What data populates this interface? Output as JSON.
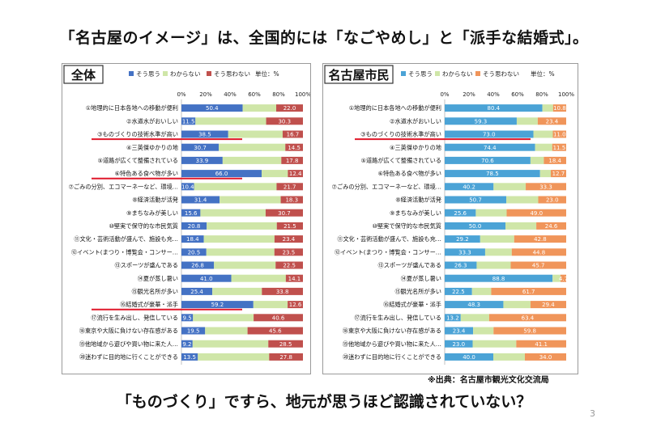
{
  "page": {
    "title": "「名古屋のイメージ」は、全国的には「なごやめし」と「派手な結婚式」。",
    "bottom_text": "「ものづくり」ですら、地元が思うほど認識されていない？",
    "source": "※出典：名古屋市観光文化交流局",
    "page_number": "3"
  },
  "colors": {
    "agree_all": "#4472c4",
    "agree_city": "#4ba3d6",
    "neutral": "#cfe6a8",
    "disagree_all": "#c0504d",
    "disagree_city": "#f0955a",
    "highlight": "#e0182a"
  },
  "chart_data": [
    {
      "type": "bar",
      "orientation": "horizontal",
      "stacked": true,
      "percent": true,
      "title": "全体",
      "unit_label": "単位：%",
      "xlim": [
        0,
        100
      ],
      "xticks": [
        "0%",
        "20%",
        "40%",
        "60%",
        "80%",
        "100%"
      ],
      "legend": [
        "そう思う",
        "わからない",
        "そう思わない"
      ],
      "legend_position": "top",
      "categories": [
        "①地理的に日本各地への移動が便利",
        "②水道水がおいしい",
        "③ものづくりの技術水準が高い",
        "④三英傑ゆかりの地",
        "⑤道路が広くて整備されている",
        "⑥特色ある食べ物が多い",
        "⑦ごみの分別、エコマーネ一など、環境…",
        "⑧経済活動が活発",
        "⑨まちなみが美しい",
        "⑩堅実で保守的な市民気質",
        "⑪文化・芸術活動が盛んで、施設も充…",
        "⑫イベント(まつり・博覧会・コンサー…",
        "⑬スポーツが盛んである",
        "⑭夏が蒸し暑い",
        "⑮観光名所が多い",
        "⑯結婚式が豪華・派手",
        "⑰流行を生み出し、発信している",
        "⑱東京や大阪に負けない存在感がある",
        "⑲他地域から遊びや買い物に来た人…",
        "⑳迷わずに目的地に行くことができる"
      ],
      "series": [
        {
          "name": "そう思う",
          "values": [
            50.4,
            11.5,
            38.5,
            30.7,
            33.9,
            66.0,
            10.4,
            31.4,
            15.6,
            20.8,
            18.4,
            20.5,
            26.8,
            41.0,
            25.4,
            59.2,
            9.5,
            19.5,
            9.2,
            13.5
          ]
        },
        {
          "name": "わからない",
          "values": [
            27.6,
            58.2,
            44.8,
            54.8,
            48.3,
            21.6,
            67.9,
            50.3,
            53.7,
            57.7,
            58.2,
            56.0,
            50.7,
            44.9,
            40.8,
            28.2,
            49.9,
            34.9,
            62.3,
            58.7
          ]
        },
        {
          "name": "そう思わない",
          "values": [
            22.0,
            30.3,
            16.7,
            14.5,
            17.8,
            12.4,
            21.7,
            18.3,
            30.7,
            21.5,
            23.4,
            23.5,
            22.5,
            14.1,
            33.8,
            12.6,
            40.6,
            45.6,
            28.5,
            27.8
          ]
        }
      ],
      "labels": {
        "agree": [
          "50.4",
          "11.5",
          "38.5",
          "30.7",
          "33.9",
          "66.0",
          "10.4",
          "31.4",
          "15.6",
          "20.8",
          "18.4",
          "20.5",
          "26.8",
          "41.0",
          "25.4",
          "59.2",
          "9.5",
          "19.5",
          "9.2",
          "13.5"
        ],
        "disagree": [
          "22.0",
          "30.3",
          "16.7",
          "14.5",
          "17.8",
          "12.4",
          "21.7",
          "18.3",
          "30.7",
          "21.5",
          "23.4",
          "23.5",
          "22.5",
          "14.1",
          "33.8",
          "12.6",
          "40.6",
          "45.6",
          "28.5",
          "27.8"
        ]
      },
      "highlighted": [
        2,
        5,
        15
      ]
    },
    {
      "type": "bar",
      "orientation": "horizontal",
      "stacked": true,
      "percent": true,
      "title": "名古屋市民",
      "unit_label": "単位：%",
      "xlim": [
        0,
        100
      ],
      "xticks": [
        "0%",
        "20%",
        "40%",
        "60%",
        "80%",
        "100%"
      ],
      "legend": [
        "そう思う",
        "わからない",
        "そう思わない"
      ],
      "legend_position": "top",
      "categories": [
        "①地理的に日本各地への移動が便利",
        "②水道水がおいしい",
        "③ものづくりの技術水準が高い",
        "④三英傑ゆかりの地",
        "⑤道路が広くて整備されている",
        "⑥特色ある食べ物が多い",
        "⑦ごみの分別、エコマーネ一など、環境…",
        "⑧経済活動が活発",
        "⑨まちなみが美しい",
        "⑩堅実で保守的な市民気質",
        "⑪文化・芸術活動が盛んで、施設も充…",
        "⑫イベント(まつり・博覧会・コンサー…",
        "⑬スポーツが盛んである",
        "⑭夏が蒸し暑い",
        "⑮観光名所が多い",
        "⑯結婚式が豪華・派手",
        "⑰流行を生み出し、発信している",
        "⑱東京や大阪に負けない存在感がある",
        "⑲他地域から遊びや買い物に来た人…",
        "⑳迷わずに目的地に行くことができる"
      ],
      "series": [
        {
          "name": "そう思う",
          "values": [
            80.4,
            59.3,
            73.0,
            74.4,
            70.6,
            78.5,
            40.2,
            50.7,
            25.6,
            50.0,
            29.2,
            33.3,
            26.3,
            88.8,
            22.5,
            48.3,
            13.2,
            23.4,
            23.0,
            40.0
          ]
        },
        {
          "name": "わからない",
          "values": [
            8.8,
            17.3,
            16.0,
            14.1,
            11.0,
            8.8,
            26.5,
            26.3,
            25.4,
            25.4,
            28.0,
            21.9,
            28.0,
            6.5,
            15.8,
            22.3,
            23.4,
            16.8,
            35.9,
            26.0
          ]
        },
        {
          "name": "そう思わない",
          "values": [
            10.8,
            23.4,
            11.0,
            11.5,
            18.4,
            12.7,
            33.3,
            23.0,
            49.0,
            24.6,
            42.8,
            44.8,
            45.7,
            4.7,
            61.7,
            29.4,
            63.4,
            59.8,
            41.1,
            34.0
          ]
        }
      ],
      "labels": {
        "agree": [
          "80.4",
          "59.3",
          "73.0",
          "74.4",
          "70.6",
          "78.5",
          "40.2",
          "50.7",
          "25.6",
          "50.0",
          "29.2",
          "33.3",
          "26.3",
          "88.8",
          "22.5",
          "48.3",
          "13.2",
          "23.4",
          "23.0",
          "40.0"
        ],
        "disagree": [
          "10.8",
          "23.4",
          "11.0",
          "11.5",
          "18.4",
          "12.7",
          "33.3",
          "23.0",
          "49.0",
          "24.6",
          "42.8",
          "44.8",
          "45.7",
          "4.7",
          "61.7",
          "29.4",
          "63.4",
          "59.8",
          "41.1",
          "34.0"
        ]
      },
      "highlighted": [
        2
      ]
    }
  ]
}
